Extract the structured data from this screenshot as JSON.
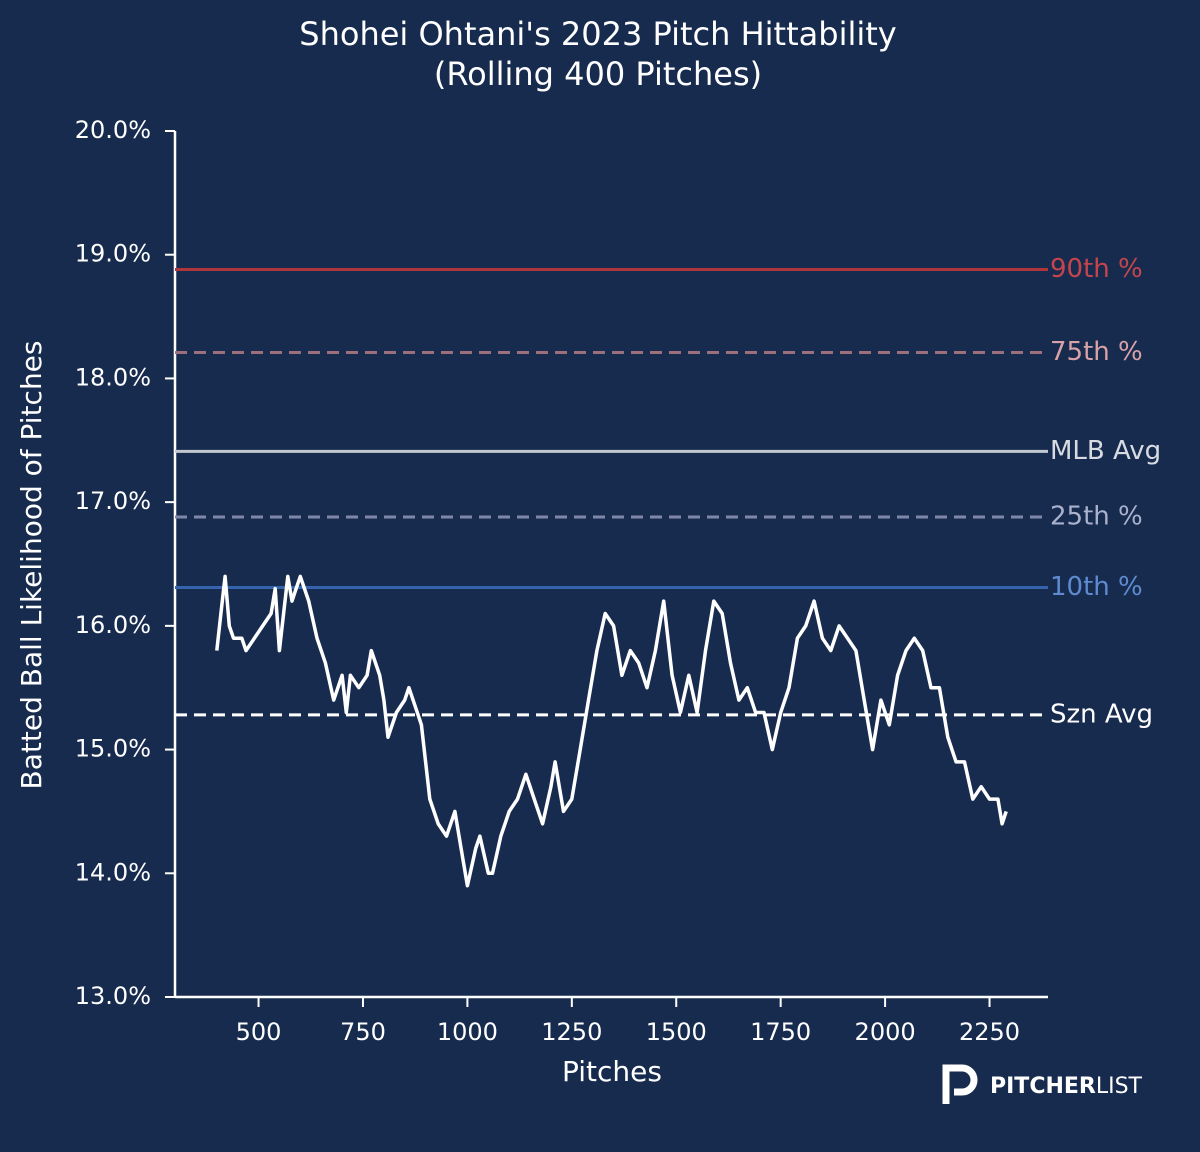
{
  "chart_data": {
    "type": "line",
    "title": "Shohei Ohtani's 2023 Pitch Hittability",
    "subtitle": "(Rolling 400 Pitches)",
    "xlabel": "Pitches",
    "ylabel": "Batted Ball Likelihood of Pitches",
    "color": "#ffffff",
    "x": [
      400,
      410,
      420,
      430,
      440,
      460,
      470,
      490,
      510,
      530,
      540,
      550,
      560,
      570,
      580,
      590,
      600,
      620,
      640,
      660,
      680,
      700,
      710,
      720,
      740,
      760,
      770,
      790,
      800,
      810,
      830,
      850,
      860,
      880,
      890,
      900,
      910,
      930,
      950,
      970,
      990,
      1000,
      1020,
      1030,
      1050,
      1060,
      1080,
      1100,
      1120,
      1140,
      1160,
      1180,
      1200,
      1210,
      1230,
      1250,
      1270,
      1290,
      1310,
      1330,
      1350,
      1370,
      1390,
      1410,
      1430,
      1450,
      1470,
      1490,
      1510,
      1530,
      1550,
      1570,
      1590,
      1610,
      1630,
      1650,
      1670,
      1690,
      1710,
      1730,
      1750,
      1770,
      1790,
      1810,
      1830,
      1850,
      1870,
      1890,
      1910,
      1930,
      1950,
      1970,
      1990,
      2010,
      2030,
      2050,
      2070,
      2090,
      2110,
      2130,
      2150,
      2170,
      2190,
      2210,
      2230,
      2250,
      2270,
      2280,
      2290
    ],
    "values": [
      15.8,
      16.1,
      16.4,
      16.0,
      15.9,
      15.9,
      15.8,
      15.9,
      16.0,
      16.1,
      16.3,
      15.8,
      16.1,
      16.4,
      16.2,
      16.3,
      16.4,
      16.2,
      15.9,
      15.7,
      15.4,
      15.6,
      15.3,
      15.6,
      15.5,
      15.6,
      15.8,
      15.6,
      15.4,
      15.1,
      15.3,
      15.4,
      15.5,
      15.3,
      15.2,
      14.9,
      14.6,
      14.4,
      14.3,
      14.5,
      14.1,
      13.9,
      14.2,
      14.3,
      14.0,
      14.0,
      14.3,
      14.5,
      14.6,
      14.8,
      14.6,
      14.4,
      14.7,
      14.9,
      14.5,
      14.6,
      15.0,
      15.4,
      15.8,
      16.1,
      16.0,
      15.6,
      15.8,
      15.7,
      15.5,
      15.8,
      16.2,
      15.6,
      15.3,
      15.6,
      15.3,
      15.8,
      16.2,
      16.1,
      15.7,
      15.4,
      15.5,
      15.3,
      15.3,
      15.0,
      15.3,
      15.5,
      15.9,
      16.0,
      16.2,
      15.9,
      15.8,
      16.0,
      15.9,
      15.8,
      15.4,
      15.0,
      15.4,
      15.2,
      15.6,
      15.8,
      15.9,
      15.8,
      15.5,
      15.5,
      15.1,
      14.9,
      14.9,
      14.6,
      14.7,
      14.6,
      14.6,
      14.4,
      14.5
    ],
    "xlim": [
      300,
      2390
    ],
    "xticks": [
      500,
      750,
      1000,
      1250,
      1500,
      1750,
      2000,
      2250
    ],
    "ylim": [
      13,
      20
    ],
    "yticks": [
      {
        "value": 13,
        "label": "13.0%"
      },
      {
        "value": 14,
        "label": "14.0%"
      },
      {
        "value": 15,
        "label": "15.0%"
      },
      {
        "value": 16,
        "label": "16.0%"
      },
      {
        "value": 17,
        "label": "17.0%"
      },
      {
        "value": 18,
        "label": "18.0%"
      },
      {
        "value": 19,
        "label": "19.0%"
      },
      {
        "value": 20,
        "label": "20.0%"
      }
    ],
    "reference_lines": [
      {
        "label": "90th %",
        "value": 18.88,
        "color": "#b0363d",
        "label_color": "#c4454c",
        "dashed": false
      },
      {
        "label": "75th %",
        "value": 18.21,
        "color": "#9c6f7c",
        "label_color": "#d9a1a8",
        "dashed": true
      },
      {
        "label": "MLB Avg",
        "value": 17.41,
        "color": "#c3c8d0",
        "label_color": "#d8dce2",
        "dashed": false
      },
      {
        "label": "25th %",
        "value": 16.88,
        "color": "#7f87a8",
        "label_color": "#a9b1cc",
        "dashed": true
      },
      {
        "label": "10th %",
        "value": 16.31,
        "color": "#3564ad",
        "label_color": "#5e8bd0",
        "dashed": false
      },
      {
        "label": "Szn Avg",
        "value": 15.28,
        "color": "#ffffff",
        "label_color": "#ffffff",
        "dashed": true
      }
    ],
    "logo": {
      "bold": "PITCHER",
      "light": "LIST"
    }
  }
}
